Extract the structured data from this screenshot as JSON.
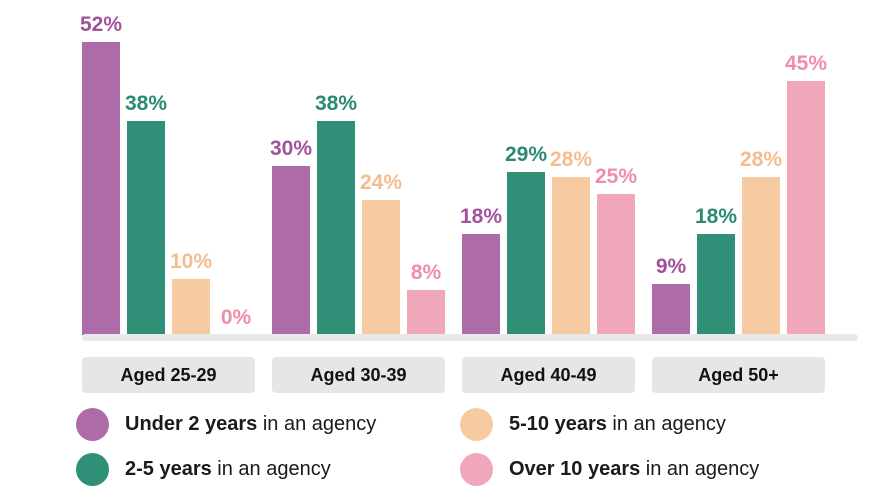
{
  "chart_data": {
    "type": "bar",
    "title": "",
    "categories": [
      "Aged 25-29",
      "Aged 30-39",
      "Aged 40-49",
      "Aged 50+"
    ],
    "series": [
      {
        "name": "Under 2 years in an agency",
        "bar_color": "#ae6baa",
        "label_color": "#a3519d",
        "values": [
          52,
          30,
          18,
          9
        ]
      },
      {
        "name": "2-5 years in an agency",
        "bar_color": "#2f8f77",
        "label_color": "#2b8a71",
        "values": [
          38,
          38,
          29,
          18
        ]
      },
      {
        "name": "5-10 years in an agency",
        "bar_color": "#f6cba1",
        "label_color": "#f4bd8c",
        "values": [
          10,
          24,
          28,
          28
        ]
      },
      {
        "name": "Over 10 years in an agency",
        "bar_color": "#f1a7ba",
        "label_color": "#f08ea8",
        "values": [
          0,
          8,
          25,
          45
        ]
      }
    ],
    "value_suffix": "%",
    "ylim": [
      0,
      52
    ],
    "xlabel": "",
    "ylabel": "",
    "grid": false,
    "legend_position": "bottom"
  },
  "legend": {
    "items": [
      {
        "bold": "Under 2 years",
        "rest": " in an agency",
        "color": "#ae6baa"
      },
      {
        "bold": "5-10 years",
        "rest": " in an agency",
        "color": "#f6cba1"
      },
      {
        "bold": "2-5 years",
        "rest": " in an agency",
        "color": "#2f8f77"
      },
      {
        "bold": "Over 10 years",
        "rest": " in an agency",
        "color": "#f1a7ba"
      }
    ]
  },
  "colors": {
    "pill_background": "#e6e6e6",
    "baseline": "#e9e9e9",
    "text": "#1a1a1a"
  }
}
